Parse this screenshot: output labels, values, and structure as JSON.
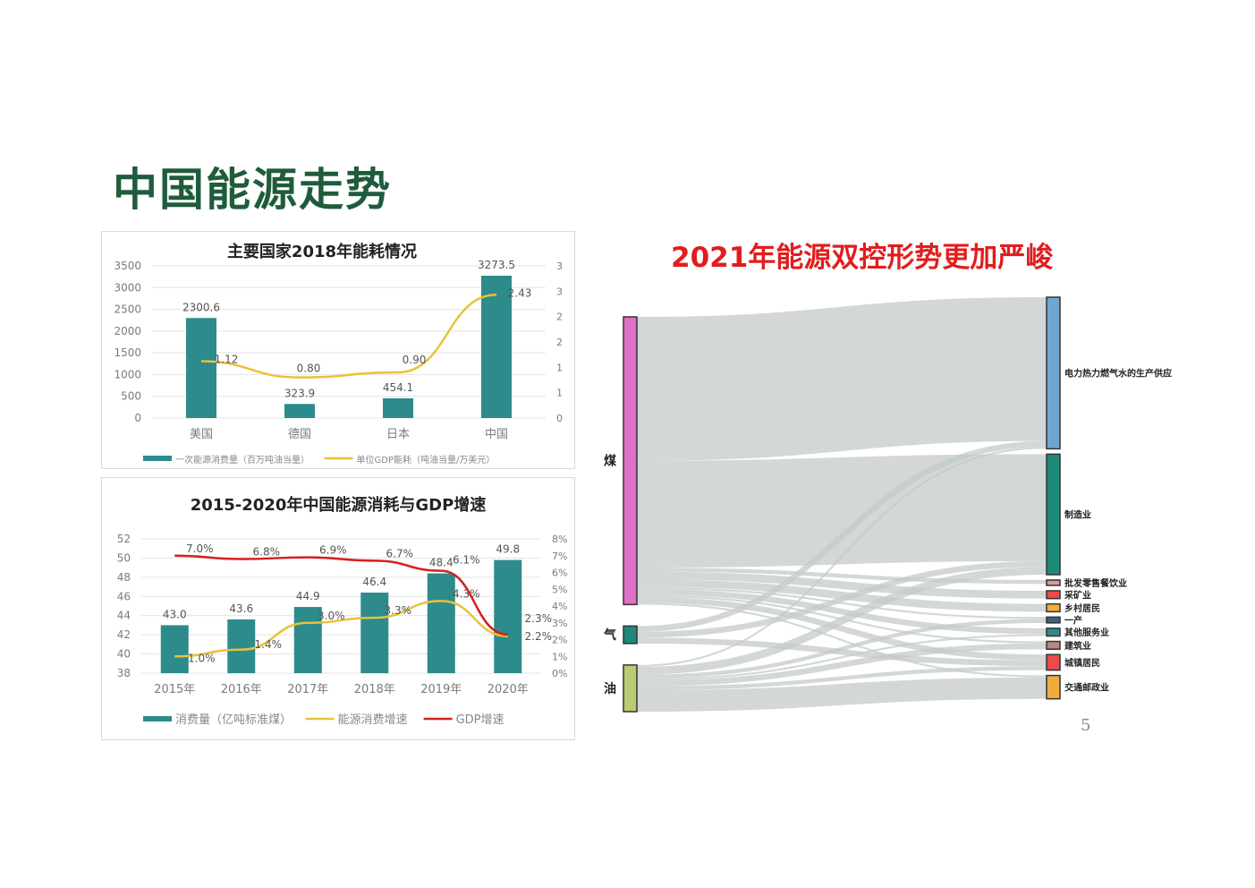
{
  "page": {
    "title": "中国能源走势",
    "page_number": "5"
  },
  "chart_data": [
    {
      "type": "bar",
      "title": "主要国家2018年能耗情况",
      "categories": [
        "美国",
        "德国",
        "日本",
        "中国"
      ],
      "series": [
        {
          "name": "一次能源消费量（百万吨油当量）",
          "type": "bar",
          "axis": "left",
          "color": "#2e8b8b",
          "values": [
            2300.6,
            323.9,
            454.1,
            3273.5
          ],
          "labels": [
            "2300.6",
            "323.9",
            "454.1",
            "3273.5"
          ]
        },
        {
          "name": "单位GDP能耗（吨油当量/万美元）",
          "type": "line",
          "axis": "right",
          "color": "#e8c23a",
          "values": [
            1.12,
            0.8,
            0.9,
            2.43
          ],
          "labels": [
            "1.12",
            "0.80",
            "0.90",
            "2.43"
          ]
        }
      ],
      "y_left": {
        "min": 0,
        "max": 3500,
        "ticks": [
          "3500",
          "3000",
          "2500",
          "2000",
          "1500",
          "1000",
          "500",
          "0"
        ]
      },
      "y_right": {
        "min": 0,
        "max": 3,
        "ticks": [
          "3",
          "3",
          "2",
          "2",
          "1",
          "1",
          "0"
        ]
      },
      "grid": true,
      "legend": "bottom"
    },
    {
      "type": "bar",
      "title": "2015-2020年中国能源消耗与GDP增速",
      "categories": [
        "2015年",
        "2016年",
        "2017年",
        "2018年",
        "2019年",
        "2020年"
      ],
      "series": [
        {
          "name": "消费量（亿吨标准煤）",
          "type": "bar",
          "axis": "left",
          "color": "#2e8b8b",
          "values": [
            43.0,
            43.6,
            44.9,
            46.4,
            48.4,
            49.8
          ],
          "labels": [
            "43.0",
            "43.6",
            "44.9",
            "46.4",
            "48.4",
            "49.8"
          ]
        },
        {
          "name": "能源消费增速",
          "type": "line",
          "axis": "right",
          "color": "#e8c23a",
          "values": [
            1.0,
            1.4,
            3.0,
            3.3,
            4.3,
            2.2
          ],
          "labels": [
            "1.0%",
            "1.4%",
            "3.0%",
            "3.3%",
            "4.3%",
            "2.2%"
          ]
        },
        {
          "name": "GDP增速",
          "type": "line",
          "axis": "right",
          "color": "#d42020",
          "values": [
            7.0,
            6.8,
            6.9,
            6.7,
            6.1,
            2.3
          ],
          "labels": [
            "7.0%",
            "6.8%",
            "6.9%",
            "6.7%",
            "6.1%",
            "2.3%"
          ]
        }
      ],
      "y_left": {
        "min": 38,
        "max": 52,
        "ticks": [
          "52",
          "50",
          "48",
          "46",
          "44",
          "42",
          "40",
          "38"
        ]
      },
      "y_right": {
        "min": 0,
        "max": 8,
        "ticks": [
          "8%",
          "7%",
          "6%",
          "5%",
          "4%",
          "3%",
          "2%",
          "1%",
          "0%"
        ]
      },
      "grid": true,
      "legend": "bottom"
    },
    {
      "type": "sankey",
      "title": "2021年能源双控形势更加严峻",
      "link_color": "#c4caca",
      "sources": [
        {
          "name": "煤",
          "color": "#e070c8"
        },
        {
          "name": "气",
          "color": "#1e8a7a"
        },
        {
          "name": "油",
          "color": "#b9cc72"
        }
      ],
      "targets": [
        {
          "name": "电力热力燃气水的生产供应",
          "color": "#6fa6d0"
        },
        {
          "name": "制造业",
          "color": "#1e8a7a"
        },
        {
          "name": "批发零售餐饮业",
          "color": "#d89a9a"
        },
        {
          "name": "采矿业",
          "color": "#e94b4b"
        },
        {
          "name": "乡村居民",
          "color": "#efad3e"
        },
        {
          "name": "一产",
          "color": "#3f5f86"
        },
        {
          "name": "其他服务业",
          "color": "#2e8b8b"
        },
        {
          "name": "建筑业",
          "color": "#b88880"
        },
        {
          "name": "城镇居民",
          "color": "#e94b4b"
        },
        {
          "name": "交通邮政业",
          "color": "#efad3e"
        }
      ],
      "links": [
        {
          "source": "煤",
          "target": "电力热力燃气水的生产供应",
          "value": 148
        },
        {
          "source": "煤",
          "target": "制造业",
          "value": 110
        },
        {
          "source": "煤",
          "target": "批发零售餐饮业",
          "value": 4
        },
        {
          "source": "煤",
          "target": "采矿业",
          "value": 8
        },
        {
          "source": "煤",
          "target": "乡村居民",
          "value": 8
        },
        {
          "source": "煤",
          "target": "一产",
          "value": 2
        },
        {
          "source": "煤",
          "target": "其他服务业",
          "value": 6
        },
        {
          "source": "煤",
          "target": "建筑业",
          "value": 2
        },
        {
          "source": "煤",
          "target": "城镇居民",
          "value": 6
        },
        {
          "source": "煤",
          "target": "交通邮政业",
          "value": 2
        },
        {
          "source": "气",
          "target": "电力热力燃气水的生产供应",
          "value": 6
        },
        {
          "source": "气",
          "target": "制造业",
          "value": 6
        },
        {
          "source": "气",
          "target": "城镇居民",
          "value": 6
        },
        {
          "source": "油",
          "target": "电力热力燃气水的生产供应",
          "value": 2
        },
        {
          "source": "油",
          "target": "制造业",
          "value": 8
        },
        {
          "source": "油",
          "target": "一产",
          "value": 4
        },
        {
          "source": "油",
          "target": "其他服务业",
          "value": 2
        },
        {
          "source": "油",
          "target": "建筑业",
          "value": 6
        },
        {
          "source": "油",
          "target": "城镇居民",
          "value": 4
        },
        {
          "source": "油",
          "target": "交通邮政业",
          "value": 22
        }
      ]
    }
  ]
}
